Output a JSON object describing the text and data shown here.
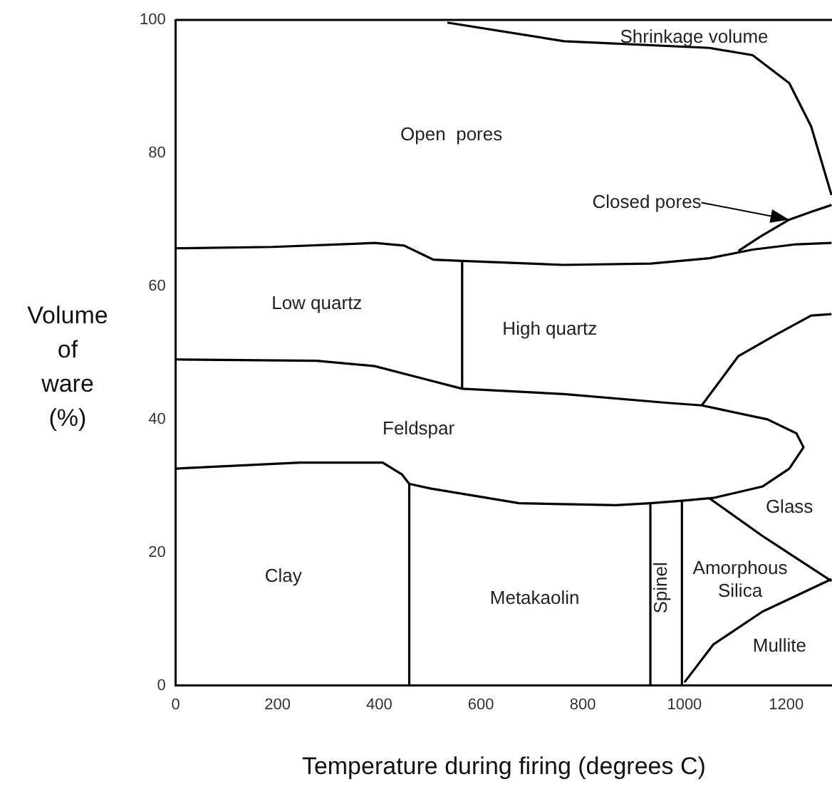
{
  "chart_data": {
    "type": "line",
    "xlabel": "Temperature during firing (degrees C)",
    "ylabel": "Volume of ware (%)",
    "xlim": [
      0,
      1290
    ],
    "ylim": [
      0,
      100
    ],
    "xticks": [
      0,
      200,
      400,
      600,
      800,
      1000,
      1200
    ],
    "yticks": [
      0,
      20,
      40,
      60,
      80,
      100
    ],
    "grid": false,
    "legend": false,
    "marker": "none",
    "line_style": "solid",
    "series": [
      {
        "color": "#000000",
        "x": [
          534,
          763,
          1049,
          1134,
          1206,
          1249,
          1289
        ],
        "values": [
          99.6,
          96.8,
          95.8,
          94.7,
          90.5,
          84,
          73.7
        ]
      },
      {
        "color": "#000000",
        "x": [
          0,
          191,
          391,
          449,
          506,
          563,
          763,
          934,
          1049,
          1134,
          1220,
          1289
        ],
        "values": [
          65.7,
          65.9,
          66.5,
          66.1,
          64,
          63.8,
          63.2,
          63.4,
          64.2,
          65.5,
          66.3,
          66.5
        ]
      },
      {
        "color": "#000000",
        "x": [
          1106,
          1150,
          1206,
          1250,
          1289
        ],
        "values": [
          65.3,
          67.5,
          70,
          71.2,
          72.2
        ]
      },
      {
        "color": "#000000",
        "x": [
          0,
          277,
          391,
          477,
          563,
          763,
          963,
          1034,
          1163,
          1220,
          1234,
          1206,
          1153,
          1057,
          1000,
          933,
          866,
          675,
          502,
          459,
          445,
          407,
          244,
          0
        ],
        "values": [
          49,
          48.8,
          48,
          46.3,
          44.6,
          43.8,
          42.5,
          42.1,
          40,
          37.9,
          35.8,
          32.6,
          29.9,
          28.2,
          27.8,
          27.4,
          27.1,
          27.4,
          29.6,
          30.3,
          31.7,
          33.5,
          33.5,
          32.6
        ]
      },
      {
        "color": "#000000",
        "x": [
          563,
          563
        ],
        "values": [
          44.6,
          63.8
        ]
      },
      {
        "color": "#000000",
        "x": [
          1034,
          1106,
          1177,
          1249,
          1289
        ],
        "values": [
          42.1,
          49.5,
          52.6,
          55.6,
          55.8
        ]
      },
      {
        "color": "#000000",
        "x": [
          459,
          459
        ],
        "values": [
          0,
          30.3
        ]
      },
      {
        "color": "#000000",
        "x": [
          933,
          933
        ],
        "values": [
          0,
          27.4
        ]
      },
      {
        "color": "#000000",
        "x": [
          995,
          995
        ],
        "values": [
          0,
          27.8
        ]
      },
      {
        "color": "#000000",
        "x": [
          1048,
          1153,
          1211,
          1289
        ],
        "values": [
          28.2,
          22.5,
          19.6,
          15.7
        ]
      },
      {
        "color": "#000000",
        "x": [
          1000,
          1057,
          1153,
          1289
        ],
        "values": [
          0.5,
          6.2,
          11.1,
          16
        ]
      }
    ],
    "annotations": [
      "Shrinkage volume",
      "Open  pores",
      {
        "text": "Closed pores",
        "x": 1206,
        "y": 70
      },
      "Low quartz",
      "High quartz",
      "Feldspar",
      "Glass",
      "Clay",
      "Metakaolin",
      "Spinel",
      "Amorphous\nSilica",
      "Mullite"
    ]
  }
}
